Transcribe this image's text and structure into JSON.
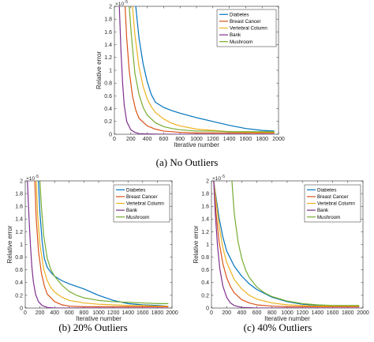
{
  "figure": {
    "colors": {
      "Diabetes": "#0072BD",
      "Breast Cancer": "#D95319",
      "Vertebral Column": "#EDB120",
      "Bank": "#7E2F8E",
      "Mushroom": "#77AC30"
    }
  },
  "chart_data": [
    {
      "type": "line",
      "caption": "(a)  No Outliers",
      "xlabel": "Iterative number",
      "ylabel": "Relative error",
      "y_exponent_label": "×10",
      "y_exponent": "-5",
      "xlim": [
        0,
        2000
      ],
      "ylim": [
        0,
        2
      ],
      "xticks": [
        "0",
        "200",
        "400",
        "600",
        "800",
        "1000",
        "1200",
        "1400",
        "1600",
        "1800",
        "2000"
      ],
      "yticks": [
        "0",
        "0.2",
        "0.4",
        "0.6",
        "0.8",
        "1",
        "1.2",
        "1.4",
        "1.6",
        "1.8",
        "2"
      ],
      "legend_position": "top-right",
      "grid": false,
      "series": [
        {
          "name": "Diabetes",
          "x": [
            260,
            300,
            350,
            400,
            450,
            500,
            600,
            700,
            800,
            1000,
            1200,
            1400,
            1600,
            1800,
            1950
          ],
          "y": [
            2.0,
            1.5,
            1.1,
            0.82,
            0.62,
            0.5,
            0.42,
            0.37,
            0.33,
            0.26,
            0.2,
            0.14,
            0.09,
            0.06,
            0.05
          ]
        },
        {
          "name": "Breast Cancer",
          "x": [
            130,
            150,
            180,
            220,
            260,
            300,
            400,
            500,
            600,
            800,
            1000,
            1400,
            1950
          ],
          "y": [
            2.0,
            1.5,
            1.0,
            0.6,
            0.38,
            0.25,
            0.13,
            0.08,
            0.05,
            0.03,
            0.02,
            0.02,
            0.02
          ]
        },
        {
          "name": "Vertebral Column",
          "x": [
            220,
            250,
            300,
            350,
            400,
            450,
            500,
            600,
            700,
            800,
            1000,
            1200,
            1400,
            1600,
            1800,
            1950
          ],
          "y": [
            2.0,
            1.55,
            1.05,
            0.75,
            0.55,
            0.43,
            0.34,
            0.24,
            0.17,
            0.13,
            0.08,
            0.06,
            0.04,
            0.03,
            0.03,
            0.03
          ]
        },
        {
          "name": "Bank",
          "x": [
            60,
            80,
            100,
            120,
            150,
            200,
            250,
            300,
            400,
            600,
            1000,
            1950
          ],
          "y": [
            2.0,
            1.3,
            0.8,
            0.45,
            0.2,
            0.07,
            0.03,
            0.01,
            0.005,
            0.0,
            0.0,
            0.0
          ]
        },
        {
          "name": "Mushroom",
          "x": [
            180,
            210,
            250,
            300,
            350,
            400,
            500,
            600,
            700,
            800,
            1000,
            1200,
            1400,
            1600,
            1800,
            1950
          ],
          "y": [
            2.0,
            1.5,
            0.95,
            0.62,
            0.42,
            0.3,
            0.18,
            0.12,
            0.09,
            0.07,
            0.05,
            0.05,
            0.04,
            0.04,
            0.04,
            0.04
          ]
        }
      ]
    },
    {
      "type": "line",
      "caption": "(b)  20% Outliers",
      "xlabel": "Iterative number",
      "ylabel": "Relative error",
      "y_exponent_label": "×10",
      "y_exponent": "-5",
      "xlim": [
        0,
        2000
      ],
      "ylim": [
        0,
        2
      ],
      "xticks": [
        "0",
        "200",
        "400",
        "600",
        "800",
        "1000",
        "1200",
        "1400",
        "1600",
        "1800",
        "2000"
      ],
      "yticks": [
        "0",
        "0.2",
        "0.4",
        "0.6",
        "0.8",
        "1",
        "1.2",
        "1.4",
        "1.6",
        "1.8",
        "2"
      ],
      "legend_position": "top-right",
      "grid": false,
      "series": [
        {
          "name": "Diabetes",
          "x": [
            180,
            200,
            230,
            260,
            300,
            350,
            400,
            500,
            600,
            800,
            1000,
            1200,
            1400,
            1600,
            1800,
            1950
          ],
          "y": [
            2.0,
            1.5,
            1.05,
            0.78,
            0.64,
            0.56,
            0.5,
            0.43,
            0.38,
            0.3,
            0.2,
            0.12,
            0.07,
            0.05,
            0.04,
            0.03
          ]
        },
        {
          "name": "Breast Cancer",
          "x": [
            130,
            150,
            180,
            220,
            260,
            300,
            400,
            500,
            600,
            800,
            1000,
            1400,
            1950
          ],
          "y": [
            2.0,
            1.4,
            0.9,
            0.55,
            0.35,
            0.22,
            0.1,
            0.05,
            0.03,
            0.02,
            0.02,
            0.02,
            0.02
          ]
        },
        {
          "name": "Vertebral Column",
          "x": [
            150,
            170,
            200,
            250,
            300,
            350,
            400,
            500,
            600,
            800,
            1000,
            1200,
            1400,
            1600,
            1800,
            1950
          ],
          "y": [
            2.0,
            1.45,
            1.0,
            0.62,
            0.43,
            0.32,
            0.25,
            0.17,
            0.12,
            0.08,
            0.06,
            0.05,
            0.04,
            0.04,
            0.03,
            0.03
          ]
        },
        {
          "name": "Bank",
          "x": [
            30,
            50,
            70,
            90,
            110,
            140,
            180,
            230,
            300,
            400,
            600,
            1000,
            1950
          ],
          "y": [
            2.0,
            1.45,
            1.0,
            0.65,
            0.42,
            0.22,
            0.1,
            0.04,
            0.01,
            0.0,
            0.0,
            0.0,
            0.0
          ]
        },
        {
          "name": "Mushroom",
          "x": [
            200,
            220,
            250,
            300,
            350,
            400,
            500,
            600,
            700,
            800,
            1000,
            1200,
            1400,
            1600,
            1800,
            1950
          ],
          "y": [
            2.0,
            1.6,
            1.15,
            0.78,
            0.6,
            0.5,
            0.36,
            0.26,
            0.2,
            0.16,
            0.12,
            0.1,
            0.09,
            0.08,
            0.07,
            0.07
          ]
        }
      ]
    },
    {
      "type": "line",
      "caption": "(c)  40% Outliers",
      "xlabel": "Iterative number",
      "ylabel": "Relative error",
      "y_exponent_label": "×10",
      "y_exponent": "-5",
      "xlim": [
        0,
        2000
      ],
      "ylim": [
        0,
        2
      ],
      "xticks": [
        "0",
        "200",
        "400",
        "600",
        "800",
        "1000",
        "1200",
        "1400",
        "1600",
        "1800",
        "2000"
      ],
      "yticks": [
        "0",
        "0.2",
        "0.4",
        "0.6",
        "0.8",
        "1",
        "1.2",
        "1.4",
        "1.6",
        "1.8",
        "2"
      ],
      "legend_position": "top-right",
      "grid": false,
      "series": [
        {
          "name": "Diabetes",
          "x": [
            30,
            60,
            100,
            150,
            200,
            300,
            400,
            500,
            600,
            800,
            1000,
            1200,
            1400,
            1600,
            1800,
            1950
          ],
          "y": [
            2.0,
            1.75,
            1.42,
            1.12,
            0.9,
            0.66,
            0.5,
            0.38,
            0.29,
            0.17,
            0.1,
            0.06,
            0.04,
            0.03,
            0.02,
            0.02
          ]
        },
        {
          "name": "Breast Cancer",
          "x": [
            30,
            60,
            100,
            150,
            200,
            250,
            300,
            400,
            500,
            600,
            800,
            1000,
            1400,
            1950
          ],
          "y": [
            2.0,
            1.5,
            1.05,
            0.7,
            0.48,
            0.34,
            0.24,
            0.13,
            0.08,
            0.05,
            0.03,
            0.02,
            0.02,
            0.02
          ]
        },
        {
          "name": "Vertebral Column",
          "x": [
            30,
            60,
            100,
            150,
            200,
            300,
            400,
            500,
            600,
            800,
            1000,
            1200,
            1400,
            1600,
            1800,
            1950
          ],
          "y": [
            2.0,
            1.7,
            1.3,
            0.95,
            0.72,
            0.45,
            0.3,
            0.2,
            0.14,
            0.08,
            0.05,
            0.04,
            0.03,
            0.03,
            0.03,
            0.03
          ]
        },
        {
          "name": "Bank",
          "x": [
            30,
            50,
            80,
            110,
            150,
            200,
            250,
            300,
            400,
            600,
            1000,
            1950
          ],
          "y": [
            2.0,
            1.5,
            0.98,
            0.62,
            0.35,
            0.17,
            0.08,
            0.04,
            0.01,
            0.0,
            0.0,
            0.0
          ]
        },
        {
          "name": "Mushroom",
          "x": [
            270,
            300,
            350,
            400,
            450,
            500,
            600,
            700,
            800,
            1000,
            1200,
            1400,
            1600,
            1800,
            1950
          ],
          "y": [
            2.0,
            1.5,
            1.05,
            0.78,
            0.6,
            0.48,
            0.33,
            0.24,
            0.18,
            0.11,
            0.07,
            0.05,
            0.04,
            0.04,
            0.04
          ]
        }
      ]
    }
  ]
}
